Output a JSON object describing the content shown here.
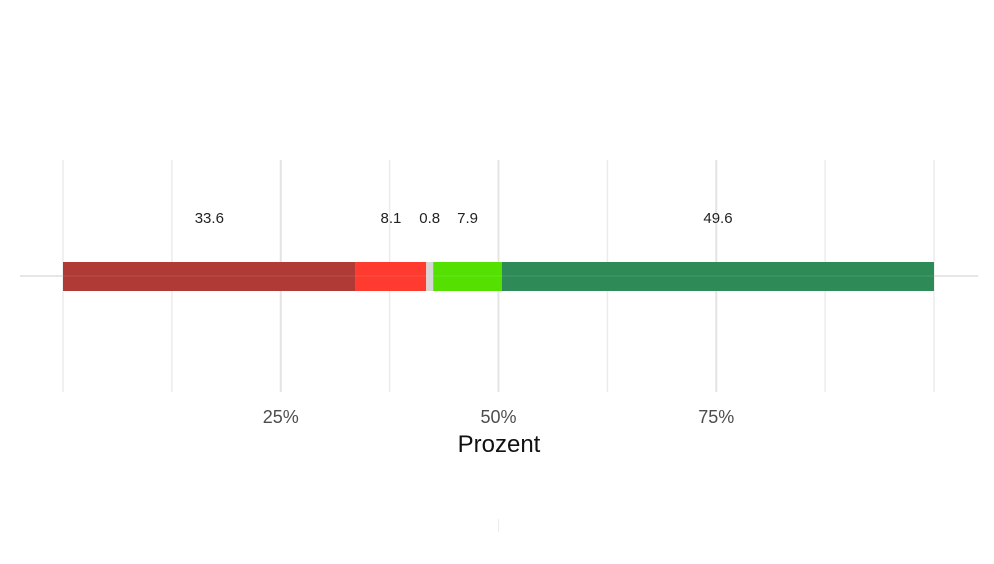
{
  "chart_data": {
    "type": "bar",
    "orientation": "horizontal",
    "stacked": true,
    "categories": [
      ""
    ],
    "series": [
      {
        "values": [
          33.6
        ],
        "color": "#b03a36",
        "label": "33.6"
      },
      {
        "values": [
          8.1
        ],
        "color": "#ff3b30",
        "label": "8.1"
      },
      {
        "values": [
          0.8
        ],
        "color": "#d6d6d6",
        "label": "0.8"
      },
      {
        "values": [
          7.9
        ],
        "color": "#54e000",
        "label": "7.9"
      },
      {
        "values": [
          49.6
        ],
        "color": "#2e8b57",
        "label": "49.6"
      }
    ],
    "xlabel": "Prozent",
    "ylabel": "",
    "xlim": [
      0,
      100
    ],
    "xticks": [
      25,
      50,
      75
    ],
    "xtick_labels": [
      "25%",
      "50%",
      "75%"
    ],
    "minor_gridlines": [
      12.5,
      37.5,
      62.5,
      87.5
    ],
    "grid": true,
    "legend": "none"
  }
}
